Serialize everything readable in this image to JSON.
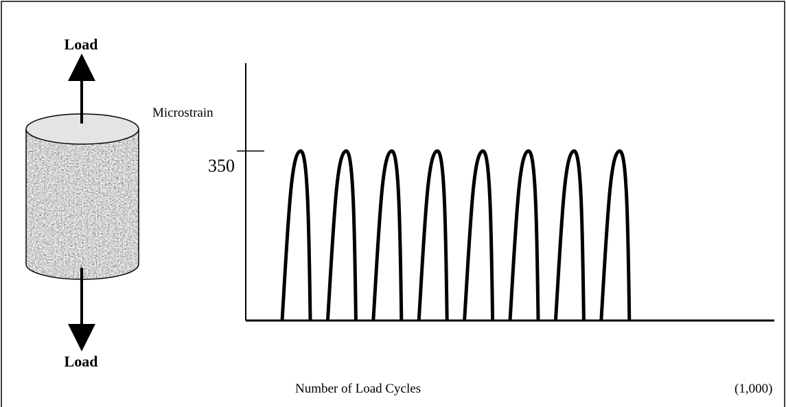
{
  "specimen": {
    "top_label": "Load",
    "bottom_label": "Load"
  },
  "plot": {
    "y_label": "Microstrain",
    "y_tick": "350",
    "x_label": "Number of Load Cycles",
    "x_unit": "(1,000)"
  }
}
